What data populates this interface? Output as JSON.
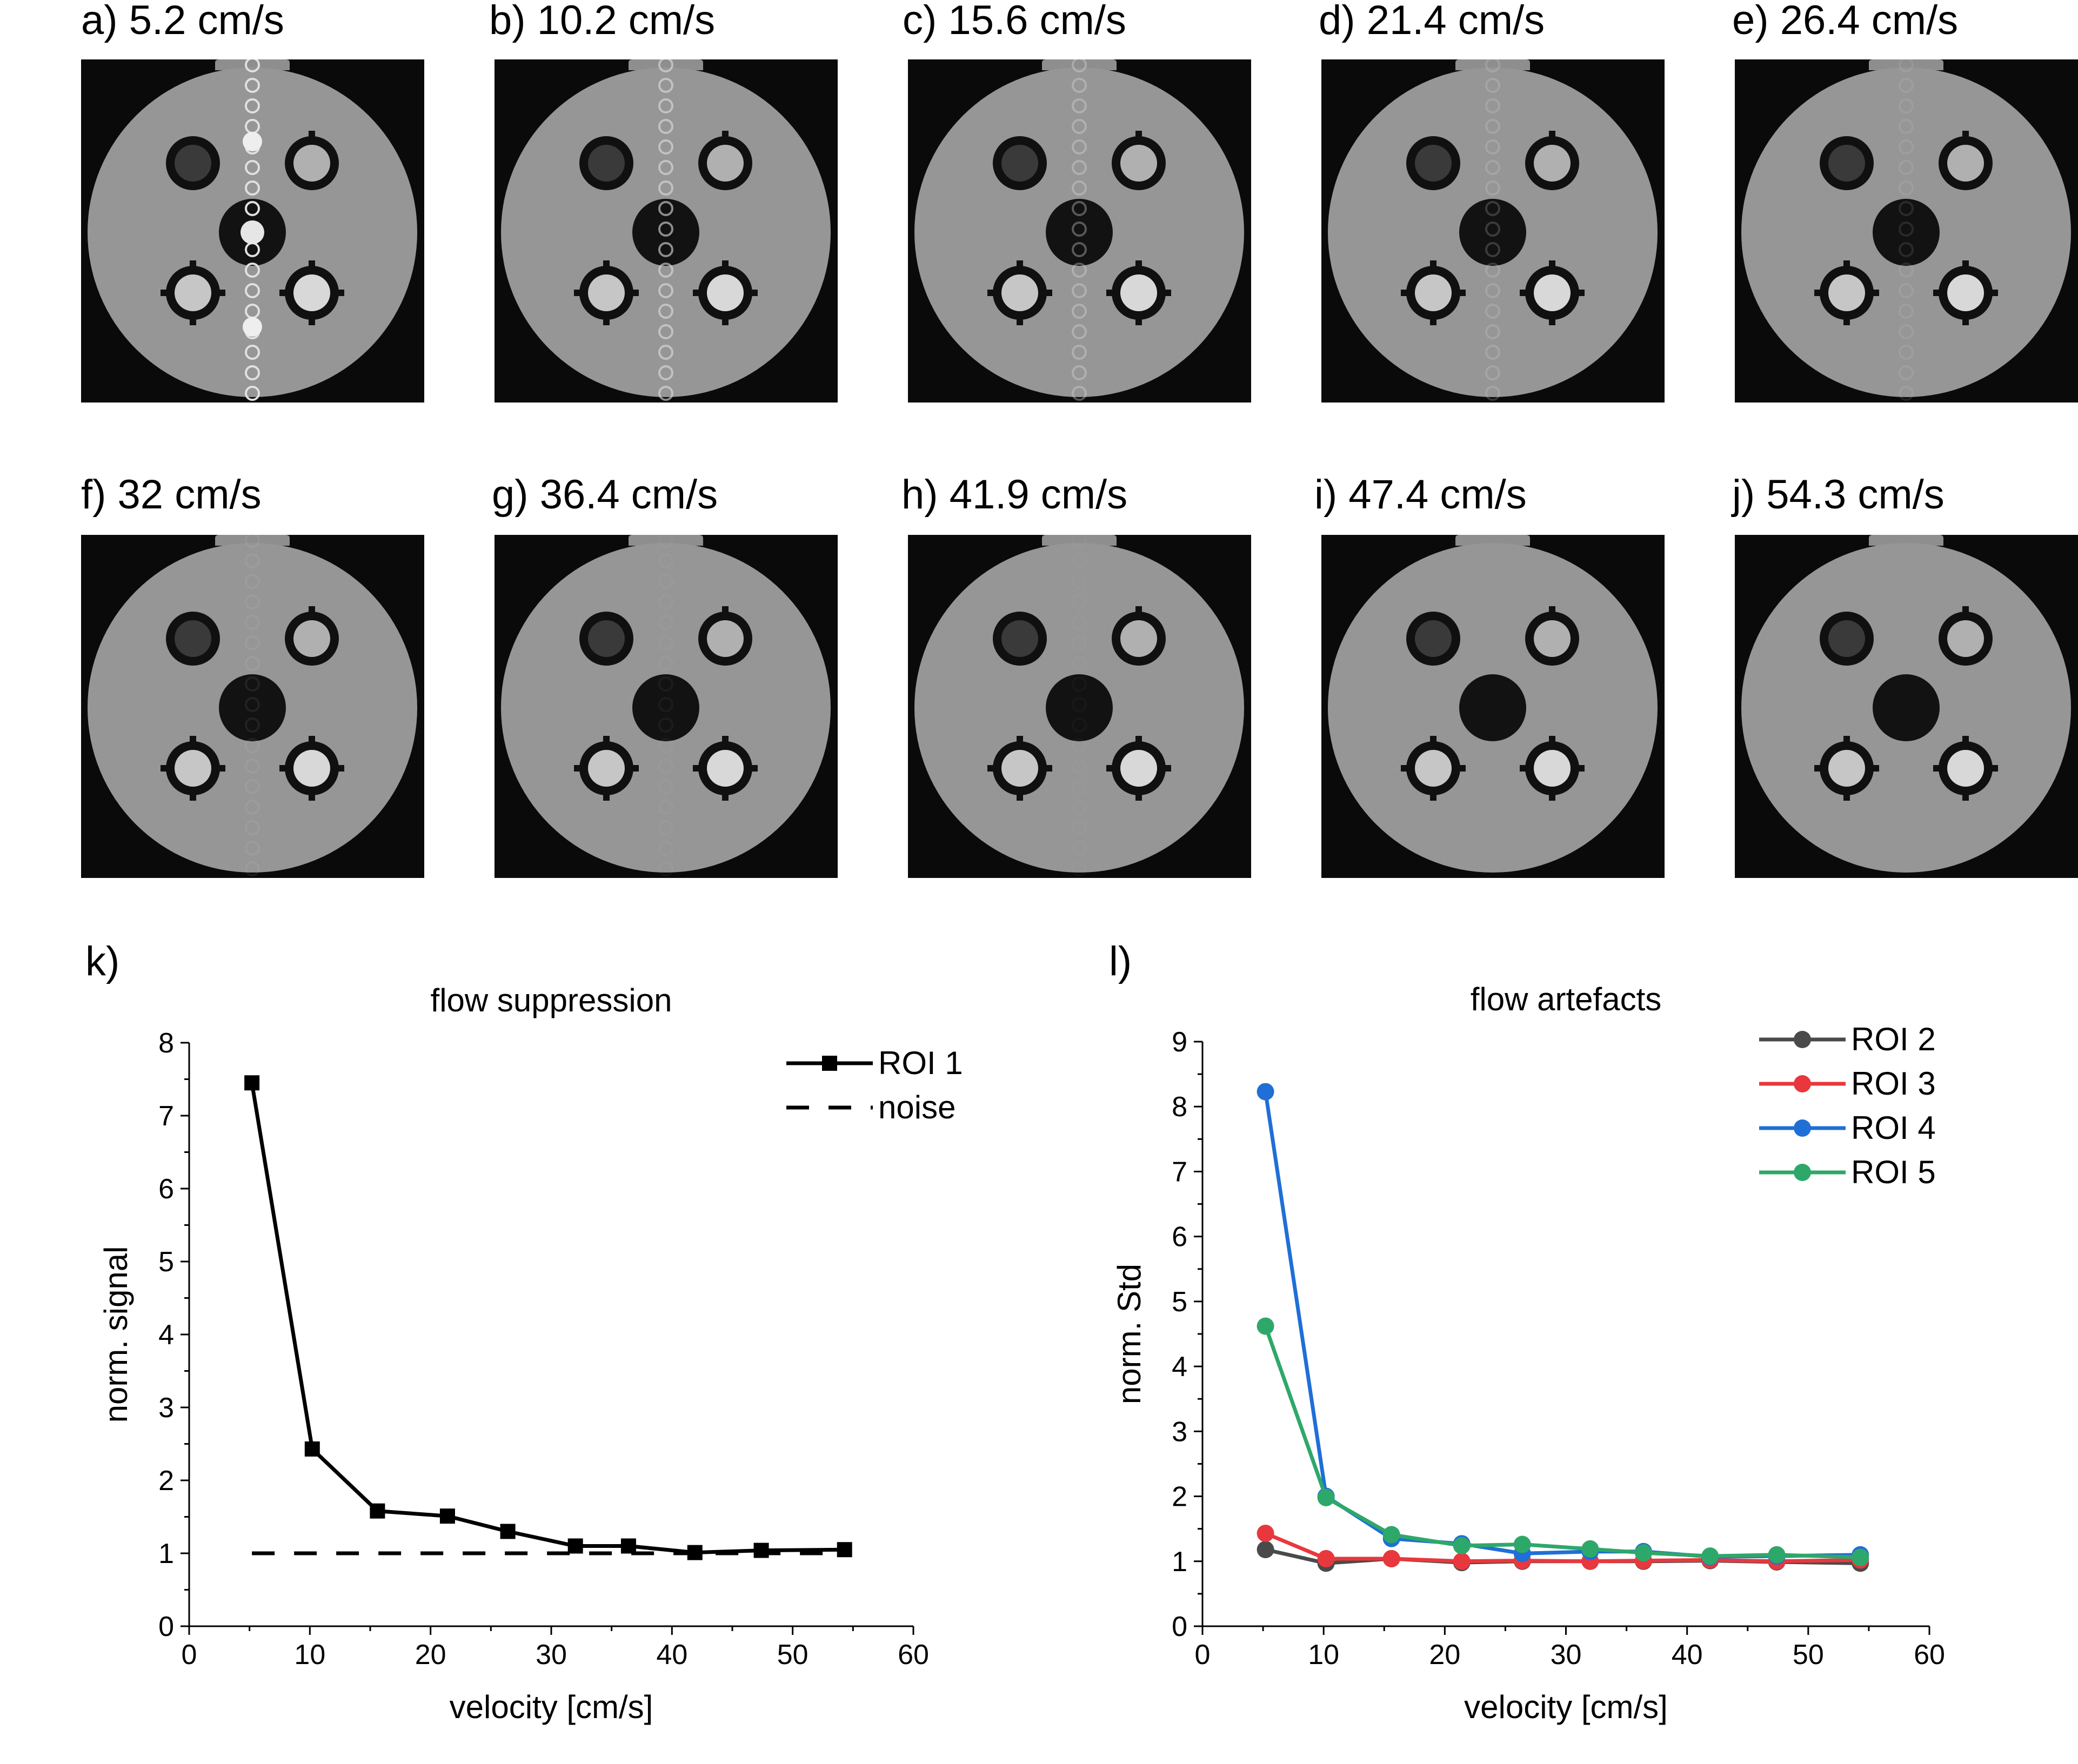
{
  "panels": [
    {
      "label": "a) 5.2 cm/s"
    },
    {
      "label": "b) 10.2 cm/s"
    },
    {
      "label": "c) 15.6 cm/s"
    },
    {
      "label": "d) 21.4 cm/s"
    },
    {
      "label": "e) 26.4 cm/s"
    },
    {
      "label": "f) 32 cm/s"
    },
    {
      "label": "g) 36.4 cm/s"
    },
    {
      "label": "h) 41.9 cm/s"
    },
    {
      "label": "i) 47.4 cm/s"
    },
    {
      "label": "j) 54.3 cm/s"
    }
  ],
  "chart_labels": {
    "k": "k)",
    "l": "l)"
  },
  "chart_data": [
    {
      "id": "k",
      "type": "line",
      "title": "flow suppression",
      "xlabel": "velocity [cm/s]",
      "ylabel": "norm. signal",
      "xlim": [
        0,
        60
      ],
      "ylim": [
        0,
        8
      ],
      "xticks": [
        0,
        10,
        20,
        30,
        40,
        50,
        60
      ],
      "yticks": [
        0,
        1,
        2,
        3,
        4,
        5,
        6,
        7,
        8
      ],
      "legend_position": "top-right",
      "series": [
        {
          "name": "ROI 1",
          "color": "#000000",
          "marker": "square",
          "dash": false,
          "x": [
            5.2,
            10.2,
            15.6,
            21.4,
            26.4,
            32,
            36.4,
            41.9,
            47.4,
            54.3
          ],
          "y": [
            7.45,
            2.43,
            1.58,
            1.51,
            1.3,
            1.1,
            1.1,
            1.01,
            1.04,
            1.05
          ]
        },
        {
          "name": "noise",
          "color": "#000000",
          "marker": "none",
          "dash": true,
          "x": [
            5.2,
            54.3
          ],
          "y": [
            1.0,
            1.0
          ]
        }
      ]
    },
    {
      "id": "l",
      "type": "line",
      "title": "flow artefacts",
      "xlabel": "velocity [cm/s]",
      "ylabel": "norm. Std",
      "xlim": [
        0,
        60
      ],
      "ylim": [
        0,
        9
      ],
      "xticks": [
        0,
        10,
        20,
        30,
        40,
        50,
        60
      ],
      "yticks": [
        0,
        1,
        2,
        3,
        4,
        5,
        6,
        7,
        8,
        9
      ],
      "legend_position": "top-right",
      "series": [
        {
          "name": "ROI 2",
          "color": "#4a4a4a",
          "marker": "circle",
          "x": [
            5.2,
            10.2,
            15.6,
            21.4,
            26.4,
            32,
            36.4,
            41.9,
            47.4,
            54.3
          ],
          "y": [
            1.18,
            0.97,
            1.04,
            0.98,
            1.0,
            1.0,
            1.0,
            1.01,
            0.99,
            0.97
          ]
        },
        {
          "name": "ROI 3",
          "color": "#e8383d",
          "marker": "circle",
          "x": [
            5.2,
            10.2,
            15.6,
            21.4,
            26.4,
            32,
            36.4,
            41.9,
            47.4,
            54.3
          ],
          "y": [
            1.43,
            1.04,
            1.04,
            1.0,
            1.01,
            1.0,
            1.01,
            1.02,
            1.0,
            1.02
          ]
        },
        {
          "name": "ROI 4",
          "color": "#1f6fd6",
          "marker": "circle",
          "x": [
            5.2,
            10.2,
            15.6,
            21.4,
            26.4,
            32,
            36.4,
            41.9,
            47.4,
            54.3
          ],
          "y": [
            8.23,
            2.0,
            1.35,
            1.27,
            1.12,
            1.15,
            1.15,
            1.07,
            1.08,
            1.1
          ]
        },
        {
          "name": "ROI 5",
          "color": "#2ea86a",
          "marker": "circle",
          "x": [
            5.2,
            10.2,
            15.6,
            21.4,
            26.4,
            32,
            36.4,
            41.9,
            47.4,
            54.3
          ],
          "y": [
            4.62,
            1.98,
            1.41,
            1.24,
            1.26,
            1.19,
            1.13,
            1.08,
            1.1,
            1.06
          ]
        }
      ]
    }
  ]
}
